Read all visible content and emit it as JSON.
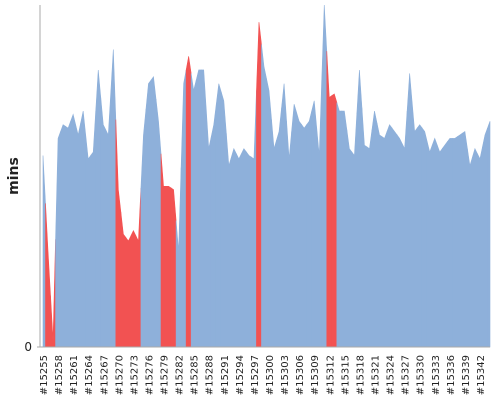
{
  "chart_data": {
    "type": "area",
    "ylabel": "mins",
    "categories": [
      "#15255",
      null,
      null,
      "#15258",
      null,
      null,
      "#15261",
      null,
      null,
      "#15264",
      null,
      null,
      "#15267",
      null,
      null,
      "#15270",
      null,
      null,
      "#15273",
      null,
      null,
      "#15276",
      null,
      null,
      "#15279",
      null,
      null,
      "#15282",
      null,
      null,
      "#15285",
      null,
      null,
      "#15288",
      null,
      null,
      "#15291",
      null,
      null,
      "#15294",
      null,
      null,
      "#15297",
      null,
      null,
      "#15300",
      null,
      null,
      "#15303",
      null,
      null,
      "#15306",
      null,
      null,
      "#15309",
      null,
      null,
      "#15312",
      null,
      null,
      "#15315",
      null,
      null,
      "#15318",
      null,
      null,
      "#15321",
      null,
      null,
      "#15324",
      null,
      null,
      "#15327",
      null,
      null,
      "#15330",
      null,
      null,
      "#15333",
      null,
      null,
      "#15336",
      null,
      null,
      "#15339",
      null,
      null,
      "#15342",
      null,
      null
    ],
    "values": [
      56,
      28,
      2,
      61,
      65,
      64,
      68,
      62,
      69,
      55,
      57,
      81,
      65,
      62,
      87,
      46,
      33,
      31,
      34,
      31,
      62,
      77,
      79,
      66,
      47,
      47,
      46,
      28,
      77,
      85,
      75,
      81,
      81,
      58,
      65,
      77,
      72,
      53,
      58,
      55,
      58,
      56,
      55,
      95,
      82,
      75,
      58,
      63,
      77,
      55,
      71,
      66,
      64,
      66,
      72,
      56,
      100,
      73,
      74,
      69,
      69,
      58,
      56,
      81,
      59,
      58,
      69,
      62,
      61,
      65,
      63,
      61,
      58,
      80,
      63,
      65,
      63,
      57,
      61,
      57,
      59,
      61,
      61,
      62,
      63,
      53,
      58,
      55,
      62,
      66
    ],
    "colors": [
      "#8eb0da",
      "#f25252",
      "#f25252",
      "#8eb0da",
      "#8eb0da",
      "#8eb0da",
      "#8eb0da",
      "#8eb0da",
      "#8eb0da",
      "#8eb0da",
      "#8eb0da",
      "#8eb0da",
      "#8eb0da",
      "#8eb0da",
      "#8eb0da",
      "#f25252",
      "#f25252",
      "#f25252",
      "#f25252",
      "#f25252",
      "#8eb0da",
      "#8eb0da",
      "#8eb0da",
      "#8eb0da",
      "#f25252",
      "#f25252",
      "#f25252",
      "#8eb0da",
      "#8eb0da",
      "#f25252",
      "#8eb0da",
      "#8eb0da",
      "#8eb0da",
      "#8eb0da",
      "#8eb0da",
      "#8eb0da",
      "#8eb0da",
      "#8eb0da",
      "#8eb0da",
      "#8eb0da",
      "#8eb0da",
      "#8eb0da",
      "#8eb0da",
      "#f25252",
      "#8eb0da",
      "#8eb0da",
      "#8eb0da",
      "#8eb0da",
      "#8eb0da",
      "#8eb0da",
      "#8eb0da",
      "#8eb0da",
      "#8eb0da",
      "#8eb0da",
      "#8eb0da",
      "#8eb0da",
      "#8eb0da",
      "#f25252",
      "#f25252",
      "#8eb0da",
      "#8eb0da",
      "#8eb0da",
      "#8eb0da",
      "#8eb0da",
      "#8eb0da",
      "#8eb0da",
      "#8eb0da",
      "#8eb0da",
      "#8eb0da",
      "#8eb0da",
      "#8eb0da",
      "#8eb0da",
      "#8eb0da",
      "#8eb0da",
      "#8eb0da",
      "#8eb0da",
      "#8eb0da",
      "#8eb0da",
      "#8eb0da",
      "#8eb0da",
      "#8eb0da",
      "#8eb0da",
      "#8eb0da",
      "#8eb0da",
      "#8eb0da",
      "#8eb0da",
      "#8eb0da",
      "#8eb0da",
      "#8eb0da",
      "#8eb0da"
    ],
    "ylim": [
      0,
      100
    ],
    "yticks": [
      0
    ]
  }
}
